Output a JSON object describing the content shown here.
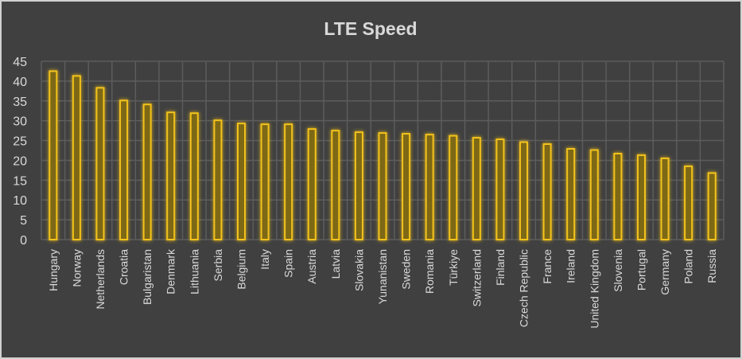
{
  "chart_data": {
    "type": "bar",
    "title": "LTE Speed",
    "xlabel": "",
    "ylabel": "",
    "ylim": [
      0,
      45
    ],
    "yticks": [
      0,
      5,
      10,
      15,
      20,
      25,
      30,
      35,
      40,
      45
    ],
    "grid": true,
    "legend": "none",
    "categories": [
      "Hungary",
      "Norway",
      "Netherlands",
      "Croatia",
      "Bulgaristan",
      "Denmark",
      "Lithuania",
      "Serbia",
      "Belgium",
      "Italy",
      "Spain",
      "Austria",
      "Latvia",
      "Slovakia",
      "Yunanistan",
      "Sweden",
      "Romania",
      "Türkiye",
      "Switzerland",
      "Finland",
      "Czech Republic",
      "France",
      "Ireland",
      "United Kingdom",
      "Slovenia",
      "Portugal",
      "Germany",
      "Poland",
      "Russia"
    ],
    "values": [
      42.5,
      41.3,
      38.3,
      35.1,
      34.1,
      32.1,
      31.9,
      30.1,
      29.3,
      29.1,
      29.1,
      27.9,
      27.5,
      27.1,
      26.9,
      26.7,
      26.5,
      26.2,
      25.7,
      25.3,
      24.6,
      24.1,
      22.9,
      22.6,
      21.7,
      21.3,
      20.5,
      18.5,
      16.8
    ],
    "colors": {
      "background": "#404040",
      "bar_outline": "#f2c21b",
      "bar_fill": "#7d6717",
      "grid": "#5c5c5c",
      "text": "#d9d9d9"
    }
  }
}
